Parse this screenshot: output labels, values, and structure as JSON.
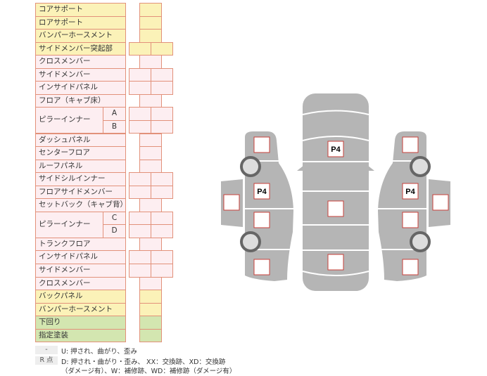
{
  "rows": [
    {
      "label": "コアサポート",
      "color": "y",
      "boxes": 1
    },
    {
      "label": "ロアサポート",
      "color": "y",
      "boxes": 1
    },
    {
      "label": "バンパーホースメント",
      "color": "y",
      "boxes": 1
    },
    {
      "label": "サイドメンバー突起部",
      "color": "y",
      "boxes": 2
    },
    {
      "label": "クロスメンバー",
      "color": "p",
      "boxes": 1
    },
    {
      "label": "サイドメンバー",
      "color": "p",
      "boxes": 2
    },
    {
      "label": "インサイドパネル",
      "color": "p",
      "boxes": 2
    },
    {
      "label": "フロア（キャブ床）",
      "color": "p",
      "boxes": 1
    },
    {
      "label": "ピラーインナー",
      "color": "p",
      "boxes": 2,
      "subs": [
        "A",
        "B"
      ]
    },
    {
      "label": "ダッシュパネル",
      "color": "p",
      "boxes": 1
    },
    {
      "label": "センターフロア",
      "color": "p",
      "boxes": 1
    },
    {
      "label": "ルーフパネル",
      "color": "p",
      "boxes": 1
    },
    {
      "label": "サイドシルインナー",
      "color": "p",
      "boxes": 2
    },
    {
      "label": "フロアサイドメンバー",
      "color": "p",
      "boxes": 2
    },
    {
      "label": "セットバック（キャブ背）",
      "color": "p",
      "boxes": 1
    },
    {
      "label": "ピラーインナー",
      "color": "p",
      "boxes": 2,
      "subs": [
        "C",
        "D"
      ]
    },
    {
      "label": "トランクフロア",
      "color": "p",
      "boxes": 1
    },
    {
      "label": "インサイドパネル",
      "color": "p",
      "boxes": 2
    },
    {
      "label": "サイドメンバー",
      "color": "p",
      "boxes": 2
    },
    {
      "label": "クロスメンバー",
      "color": "p",
      "boxes": 1
    },
    {
      "label": "バックパネル",
      "color": "y",
      "boxes": 1
    },
    {
      "label": "バンパーホースメント",
      "color": "y",
      "boxes": 1
    },
    {
      "label": "下回り",
      "color": "g",
      "boxes": 1
    },
    {
      "label": "指定塗装",
      "color": "g",
      "boxes": 1
    }
  ],
  "legend": {
    "key1": "-",
    "text1": "U: 押され、曲がり、歪み",
    "key2": "R 点",
    "text2": "D: 押され・曲がり・歪み、 XX：交換跡、XD：交換跡",
    "text3": "（ダメージ有）、W：補修跡、WD：補修跡（ダメージ有）"
  },
  "diagram": {
    "markers": [
      "P4",
      "P4",
      "P4"
    ]
  },
  "colors": {
    "body": "#b5b5b5",
    "marker_border": "#c8403a"
  }
}
